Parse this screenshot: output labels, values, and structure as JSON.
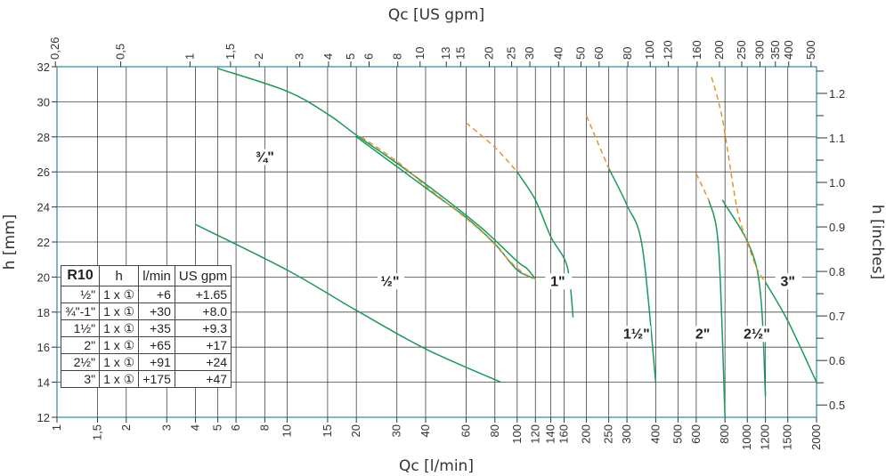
{
  "chart_data": {
    "type": "line",
    "x_axis_bottom": {
      "label": "Qc [l/min]",
      "scale": "log",
      "range": [
        1,
        2000
      ],
      "ticks": [
        1,
        1.5,
        2,
        3,
        4,
        5,
        6,
        8,
        10,
        15,
        20,
        30,
        40,
        60,
        80,
        100,
        120,
        140,
        160,
        200,
        250,
        300,
        400,
        500,
        600,
        800,
        1000,
        1200,
        1500,
        2000
      ],
      "tick_labels": [
        "1",
        "1,5",
        "2",
        "3",
        "4",
        "5",
        "6",
        "8",
        "10",
        "15",
        "20",
        "30",
        "40",
        "60",
        "80",
        "100",
        "120",
        "140",
        "160",
        "200",
        "250",
        "300",
        "400",
        "500",
        "600",
        "800",
        "1000",
        "1200",
        "1500",
        "2000"
      ]
    },
    "x_axis_top": {
      "label": "Qc [US gpm]",
      "scale": "log",
      "ticks": [
        0.26,
        0.5,
        1,
        1.5,
        2,
        3,
        4,
        5,
        6,
        8,
        10,
        13,
        15,
        20,
        25,
        30,
        40,
        50,
        60,
        80,
        100,
        120,
        160,
        200,
        250,
        300,
        350,
        400,
        500
      ],
      "tick_labels": [
        "0,26",
        "0,5",
        "1",
        "1,5",
        "2",
        "3",
        "4",
        "5",
        "6",
        "8",
        "10",
        "13",
        "15",
        "20",
        "25",
        "30",
        "40",
        "50",
        "60",
        "80",
        "100",
        "120",
        "160",
        "200",
        "250",
        "300",
        "350",
        "400",
        "500"
      ]
    },
    "y_axis_left": {
      "label": "h [mm]",
      "range": [
        12,
        32
      ],
      "ticks": [
        12,
        14,
        16,
        18,
        20,
        22,
        24,
        26,
        28,
        30,
        32
      ]
    },
    "y_axis_right": {
      "label": "h [inches]",
      "ticks": [
        0.5,
        0.6,
        0.7,
        0.8,
        0.9,
        1.0,
        1.1,
        1.2
      ],
      "tick_labels": [
        "0.5",
        "0.6",
        "0.7",
        "0.8",
        "0.9",
        "1.0",
        "1.1",
        "1.2"
      ]
    },
    "grid": true,
    "series": [
      {
        "name": "½\"",
        "color": "#1a9a5a",
        "style": "solid",
        "points": [
          [
            4,
            23
          ],
          [
            10,
            20.4
          ],
          [
            20,
            18.1
          ],
          [
            40,
            15.9
          ],
          [
            85,
            14
          ]
        ]
      },
      {
        "name": "¾\"",
        "color": "#1a9a5a",
        "style": "solid",
        "points": [
          [
            5,
            31.9
          ],
          [
            10,
            30.6
          ],
          [
            15,
            29.3
          ],
          [
            20,
            28.1
          ],
          [
            30,
            26.5
          ],
          [
            45,
            24.8
          ],
          [
            70,
            22.8
          ],
          [
            100,
            20.9
          ],
          [
            110,
            20.5
          ],
          [
            120,
            19.9
          ]
        ]
      },
      {
        "name": "1\"",
        "color": "#1a9a5a",
        "style": "solid",
        "points": [
          [
            20,
            28
          ],
          [
            30,
            26.3
          ],
          [
            45,
            24.6
          ],
          [
            60,
            23.4
          ],
          [
            80,
            21.9
          ],
          [
            100,
            20.4
          ],
          [
            120,
            19.9
          ]
        ]
      },
      {
        "name": "1\"",
        "color": "#1a9a5a",
        "style": "solid",
        "points": [
          [
            100,
            26
          ],
          [
            120,
            24.4
          ],
          [
            140,
            22.3
          ],
          [
            165,
            20.6
          ],
          [
            175,
            17.7
          ]
        ]
      },
      {
        "name": "1½\"",
        "color": "#1a9a5a",
        "style": "solid",
        "points": [
          [
            250,
            26.2
          ],
          [
            300,
            24.1
          ],
          [
            350,
            21.7
          ],
          [
            400,
            14
          ]
        ]
      },
      {
        "name": "2\"",
        "color": "#1a9a5a",
        "style": "solid",
        "points": [
          [
            680,
            24.4
          ],
          [
            750,
            21.7
          ],
          [
            800,
            12
          ]
        ]
      },
      {
        "name": "2½\"",
        "color": "#1a9a5a",
        "style": "solid",
        "points": [
          [
            780,
            24.4
          ],
          [
            1100,
            20.5
          ],
          [
            1200,
            13.2
          ]
        ]
      },
      {
        "name": "3\"",
        "color": "#1a9a5a",
        "style": "solid",
        "points": [
          [
            1200,
            19.7
          ],
          [
            1500,
            17.5
          ],
          [
            2000,
            14
          ]
        ]
      },
      {
        "name": "",
        "color": "#e8932a",
        "style": "dashed",
        "points": [
          [
            21,
            28
          ],
          [
            30,
            26.6
          ],
          [
            40,
            25.2
          ],
          [
            70,
            22.6
          ],
          [
            100,
            20.5
          ],
          [
            120,
            19.9
          ]
        ]
      },
      {
        "name": "",
        "color": "#e8932a",
        "style": "dashed",
        "points": [
          [
            60,
            28.8
          ],
          [
            80,
            27.4
          ],
          [
            100,
            26
          ]
        ]
      },
      {
        "name": "",
        "color": "#e8932a",
        "style": "dashed",
        "points": [
          [
            200,
            29.2
          ],
          [
            250,
            26.2
          ]
        ]
      },
      {
        "name": "",
        "color": "#e8932a",
        "style": "dashed",
        "points": [
          [
            600,
            25.9
          ],
          [
            680,
            24.4
          ]
        ]
      },
      {
        "name": "",
        "color": "#e8932a",
        "style": "dashed",
        "points": [
          [
            700,
            31.4
          ],
          [
            780,
            29
          ],
          [
            900,
            24
          ],
          [
            1000,
            22
          ],
          [
            1100,
            20.5
          ],
          [
            1200,
            19.7
          ]
        ]
      }
    ],
    "annotations": [
      {
        "text": "¾\"",
        "x": 8,
        "y": 26.6
      },
      {
        "text": "½\"",
        "x": 28,
        "y": 19.5
      },
      {
        "text": "1\"",
        "x": 150,
        "y": 19.5
      },
      {
        "text": "1½\"",
        "x": 330,
        "y": 16.5
      },
      {
        "text": "2\"",
        "x": 640,
        "y": 16.5
      },
      {
        "text": "2½\"",
        "x": 1100,
        "y": 16.5
      },
      {
        "text": "3\"",
        "x": 1500,
        "y": 19.5
      }
    ],
    "table": {
      "headers": [
        "R10",
        "h",
        "l/min",
        "US gpm"
      ],
      "rows": [
        [
          "½\"",
          "1 x ①",
          "+6",
          "+1.65"
        ],
        [
          "¾\"-1\"",
          "1 x ①",
          "+30",
          "+8.0"
        ],
        [
          "1½\"",
          "1 x ①",
          "+35",
          "+9.3"
        ],
        [
          "2\"",
          "1 x ①",
          "+65",
          "+17"
        ],
        [
          "2½\"",
          "1 x ①",
          "+91",
          "+24"
        ],
        [
          "3\"",
          "1 x ①",
          "+175",
          "+47"
        ]
      ]
    }
  }
}
